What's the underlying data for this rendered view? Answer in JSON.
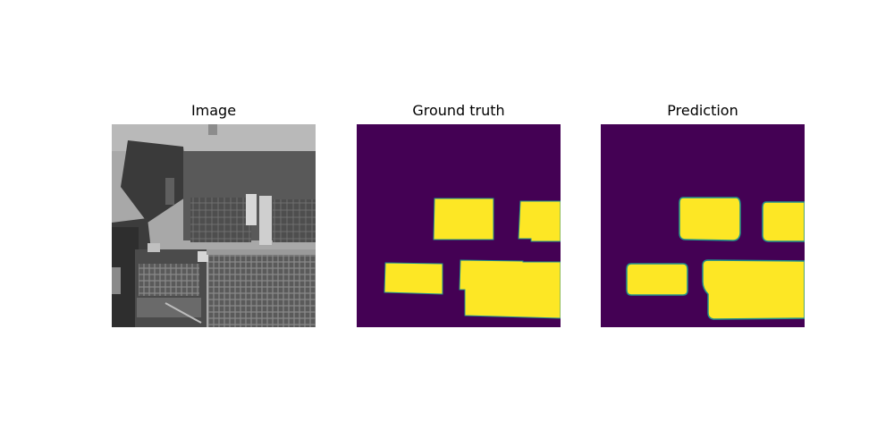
{
  "panels": [
    {
      "title": "Image",
      "type": "grayscale aerial photo of rooftops with solar panels"
    },
    {
      "title": "Ground truth",
      "type": "segmentation mask"
    },
    {
      "title": "Prediction",
      "type": "segmentation mask"
    }
  ],
  "colors": {
    "mask_background": "#440154",
    "mask_foreground": "#fde725",
    "mask_edge": "#21918c"
  }
}
